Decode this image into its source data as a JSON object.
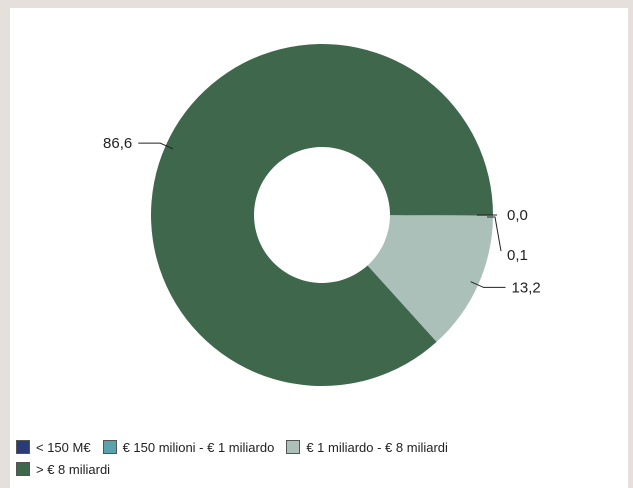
{
  "chart_data": {
    "type": "pie",
    "variant": "donut",
    "categories": [
      "< 150 M€",
      "€ 150 milioni - € 1 miliardo",
      "€ 1 miliardo - € 8 miliardi",
      "> € 8 miliardi"
    ],
    "values": [
      0.0,
      0.1,
      13.2,
      86.6
    ],
    "value_labels": [
      "0,0",
      "0,1",
      "13,2",
      "86,6"
    ],
    "colors": [
      "#2b3a78",
      "#5aa3ad",
      "#abc0b8",
      "#3e674c"
    ],
    "legend_position": "bottom-left"
  }
}
